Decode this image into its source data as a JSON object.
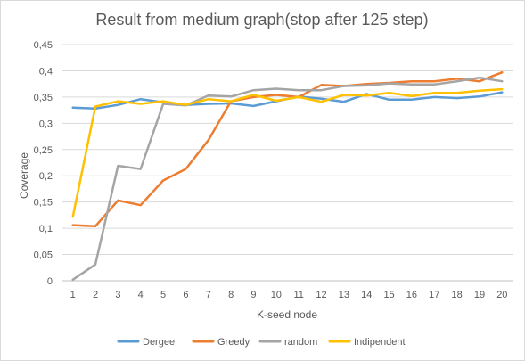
{
  "chart_data": {
    "type": "line",
    "title": "Result from medium graph(stop after 125 step)",
    "xlabel": "K-seed node",
    "ylabel": "Coverage",
    "x": [
      1,
      2,
      3,
      4,
      5,
      6,
      7,
      8,
      9,
      10,
      11,
      12,
      13,
      14,
      15,
      16,
      17,
      18,
      19,
      20
    ],
    "ylim": [
      0,
      0.45
    ],
    "yticks": [
      "0",
      "0,05",
      "0,1",
      "0,15",
      "0,2",
      "0,25",
      "0,3",
      "0,35",
      "0,4",
      "0,45"
    ],
    "grid": "horizontal",
    "legend_position": "bottom",
    "series": [
      {
        "name": "Dergee",
        "color": "#5b9bd5",
        "values": [
          0.33,
          0.328,
          0.335,
          0.346,
          0.34,
          0.335,
          0.337,
          0.338,
          0.333,
          0.342,
          0.351,
          0.347,
          0.341,
          0.356,
          0.345,
          0.345,
          0.35,
          0.348,
          0.351,
          0.359
        ]
      },
      {
        "name": "Greedy",
        "color": "#ed7d31",
        "values": [
          0.106,
          0.104,
          0.153,
          0.144,
          0.191,
          0.213,
          0.268,
          0.342,
          0.35,
          0.354,
          0.35,
          0.373,
          0.371,
          0.375,
          0.377,
          0.38,
          0.38,
          0.385,
          0.38,
          0.397
        ]
      },
      {
        "name": "random",
        "color": "#a5a5a5",
        "values": [
          0.002,
          0.031,
          0.219,
          0.213,
          0.337,
          0.334,
          0.353,
          0.351,
          0.363,
          0.366,
          0.363,
          0.363,
          0.371,
          0.372,
          0.376,
          0.374,
          0.374,
          0.38,
          0.387,
          0.38
        ]
      },
      {
        "name": "Indipendent",
        "color": "#ffc000",
        "values": [
          0.122,
          0.332,
          0.342,
          0.337,
          0.342,
          0.335,
          0.346,
          0.342,
          0.354,
          0.343,
          0.35,
          0.341,
          0.354,
          0.353,
          0.358,
          0.352,
          0.358,
          0.358,
          0.362,
          0.365
        ]
      }
    ]
  }
}
